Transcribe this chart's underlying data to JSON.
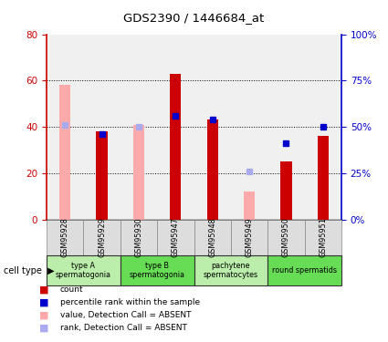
{
  "title": "GDS2390 / 1446684_at",
  "samples": [
    "GSM95928",
    "GSM95929",
    "GSM95930",
    "GSM95947",
    "GSM95948",
    "GSM95949",
    "GSM95950",
    "GSM95951"
  ],
  "count_values": [
    null,
    38,
    null,
    63,
    43,
    null,
    25,
    36
  ],
  "count_absent": [
    58,
    null,
    41,
    null,
    null,
    12,
    null,
    null
  ],
  "rank_values": [
    null,
    46,
    null,
    56,
    54,
    null,
    41,
    50
  ],
  "rank_absent": [
    51,
    null,
    50,
    null,
    null,
    26,
    null,
    null
  ],
  "ylim_left": [
    0,
    80
  ],
  "ylim_right": [
    0,
    100
  ],
  "yticks_left": [
    0,
    20,
    40,
    60,
    80
  ],
  "yticks_right": [
    0,
    25,
    50,
    75,
    100
  ],
  "ytick_labels_left": [
    "0",
    "20",
    "40",
    "60",
    "80"
  ],
  "ytick_labels_right": [
    "0%",
    "25%",
    "50%",
    "75%",
    "100%"
  ],
  "color_count": "#cc0000",
  "color_count_absent": "#ffaaaa",
  "color_rank": "#0000cc",
  "color_rank_absent": "#aaaaee",
  "cell_groups": [
    {
      "label": "type A\nspermatogonia",
      "start": 0,
      "end": 1,
      "color": "#bbeeaa"
    },
    {
      "label": "type B\nspermatogonia",
      "start": 2,
      "end": 3,
      "color": "#66dd55"
    },
    {
      "label": "pachytene\nspermatocytes",
      "start": 4,
      "end": 5,
      "color": "#bbeeaa"
    },
    {
      "label": "round spermatids",
      "start": 6,
      "end": 7,
      "color": "#66dd55"
    }
  ],
  "legend_items": [
    {
      "color": "#cc0000",
      "label": "count"
    },
    {
      "color": "#0000cc",
      "label": "percentile rank within the sample"
    },
    {
      "color": "#ffaaaa",
      "label": "value, Detection Call = ABSENT"
    },
    {
      "color": "#aaaaee",
      "label": "rank, Detection Call = ABSENT"
    }
  ]
}
